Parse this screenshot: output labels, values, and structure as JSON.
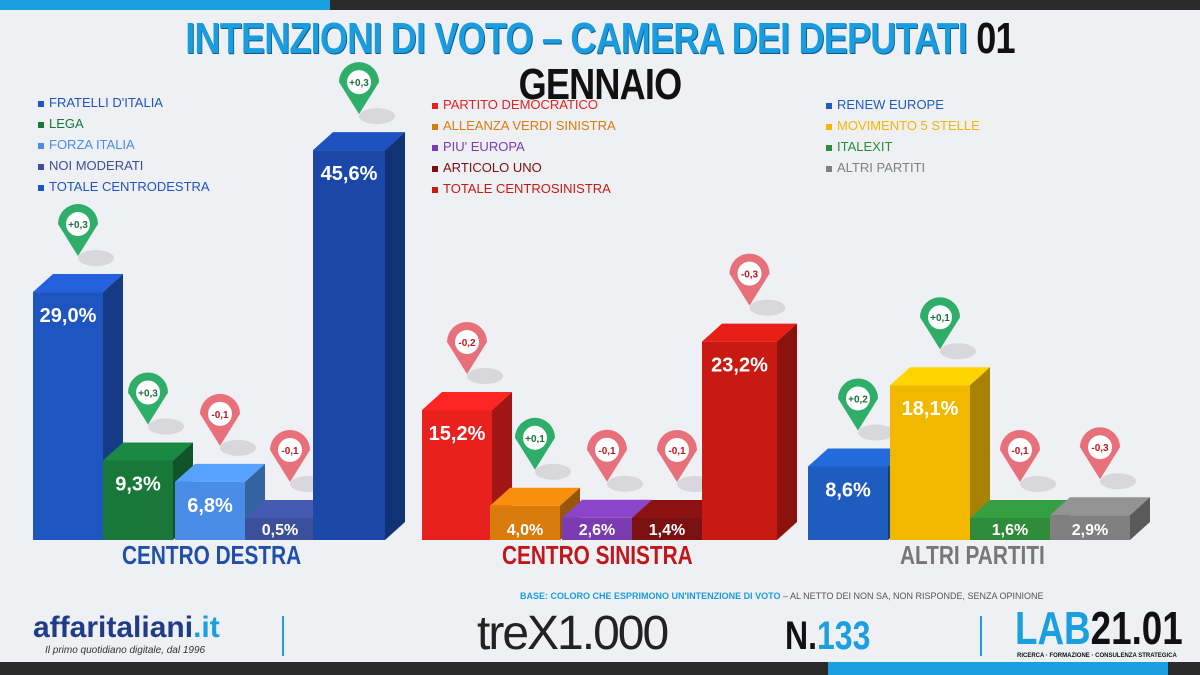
{
  "chart_data": {
    "type": "bar",
    "title": "INTENZIONI DI VOTO – CAMERA DEI DEPUTATI",
    "title_date": "01 GENNAIO",
    "unit": "%",
    "groups": [
      {
        "label": "CENTRO DESTRA",
        "color": "#1f4fa8",
        "bars": [
          {
            "name": "FRATELLI D'ITALIA",
            "value": 29.0,
            "label": "29,0%",
            "change": "+0,3",
            "color": "#1f55c0"
          },
          {
            "name": "LEGA",
            "value": 9.3,
            "label": "9,3%",
            "change": "+0,3",
            "color": "#17783a"
          },
          {
            "name": "FORZA ITALIA",
            "value": 6.8,
            "label": "6,8%",
            "change": "-0,1",
            "color": "#4a8de8"
          },
          {
            "name": "NOI MODERATI",
            "value": 0.5,
            "label": "0,5%",
            "change": "-0,1",
            "color": "#3c4f9a"
          },
          {
            "name": "TOTALE CENTRODESTRA",
            "value": 45.6,
            "label": "45,6%",
            "change": "+0,3",
            "color": "#1a47a8"
          }
        ]
      },
      {
        "label": "CENTRO SINISTRA",
        "color": "#c0171c",
        "bars": [
          {
            "name": "PARTITO DEMOCRATICO",
            "value": 15.2,
            "label": "15,2%",
            "change": "-0,2",
            "color": "#e8201e"
          },
          {
            "name": "ALLEANZA VERDI SINISTRA",
            "value": 4.0,
            "label": "4,0%",
            "change": "+0,1",
            "color": "#d97c0c"
          },
          {
            "name": "PIU' EUROPA",
            "value": 2.6,
            "label": "2,6%",
            "change": "-0,1",
            "color": "#7a3cb0"
          },
          {
            "name": "ARTICOLO UNO",
            "value": 1.4,
            "label": "1,4%",
            "change": "-0,1",
            "color": "#7a1010"
          },
          {
            "name": "TOTALE CENTROSINISTRA",
            "value": 23.2,
            "label": "23,2%",
            "change": "-0,3",
            "color": "#c81a12"
          }
        ]
      },
      {
        "label": "ALTRI PARTITI",
        "color": "#777777",
        "bars": [
          {
            "name": "RENEW EUROPE",
            "value": 8.6,
            "label": "8,6%",
            "change": "+0,2",
            "color": "#1e5cc0"
          },
          {
            "name": "MOVIMENTO 5 STELLE",
            "value": 18.1,
            "label": "18,1%",
            "change": "+0,1",
            "color": "#f2b800"
          },
          {
            "name": "ITALEXIT",
            "value": 1.6,
            "label": "1,6%",
            "change": "-0,1",
            "color": "#2e8b3a"
          },
          {
            "name": "ALTRI PARTITI",
            "value": 2.9,
            "label": "2,9%",
            "change": "-0,3",
            "color": "#808080"
          }
        ]
      }
    ]
  },
  "legends": [
    [
      {
        "t": "FRATELLI D'ITALIA",
        "c": "#1f55c0"
      },
      {
        "t": "LEGA",
        "c": "#17783a"
      },
      {
        "t": "FORZA ITALIA",
        "c": "#4a8de8"
      },
      {
        "t": "NOI MODERATI",
        "c": "#3c4f9a"
      },
      {
        "t": "TOTALE CENTRODESTRA",
        "c": "#1f55c0"
      }
    ],
    [
      {
        "t": "PARTITO DEMOCRATICO",
        "c": "#e8201e"
      },
      {
        "t": "ALLEANZA VERDI SINISTRA",
        "c": "#d97c0c"
      },
      {
        "t": "PIU' EUROPA",
        "c": "#7a3cb0"
      },
      {
        "t": "ARTICOLO UNO",
        "c": "#7a1010"
      },
      {
        "t": "TOTALE CENTROSINISTRA",
        "c": "#c81a12"
      }
    ],
    [
      {
        "t": "RENEW EUROPE",
        "c": "#1e5cc0"
      },
      {
        "t": "MOVIMENTO 5 STELLE",
        "c": "#f2b800"
      },
      {
        "t": "ITALEXIT",
        "c": "#2e8b3a"
      },
      {
        "t": "ALTRI PARTITI",
        "c": "#808080"
      }
    ]
  ],
  "footer": {
    "base": "BASE: COLORO CHE ESPRIMONO UN'INTENZIONE DI VOTO",
    "base_note": " – AL NETTO DEI NON SA, NON RISPONDE, SENZA OPINIONE",
    "logo": "affaritaliani",
    "logo_ext": ".it",
    "tagline": "Il primo quotidiano digitale, dal 1996",
    "trex": "treX1.000",
    "number_prefix": "N.",
    "number": "133",
    "lab_a": "LAB",
    "lab_b": "21.01",
    "lab_tag": "RICERCA · FORMAZIONE · CONSULENZA STRATEGICA"
  }
}
